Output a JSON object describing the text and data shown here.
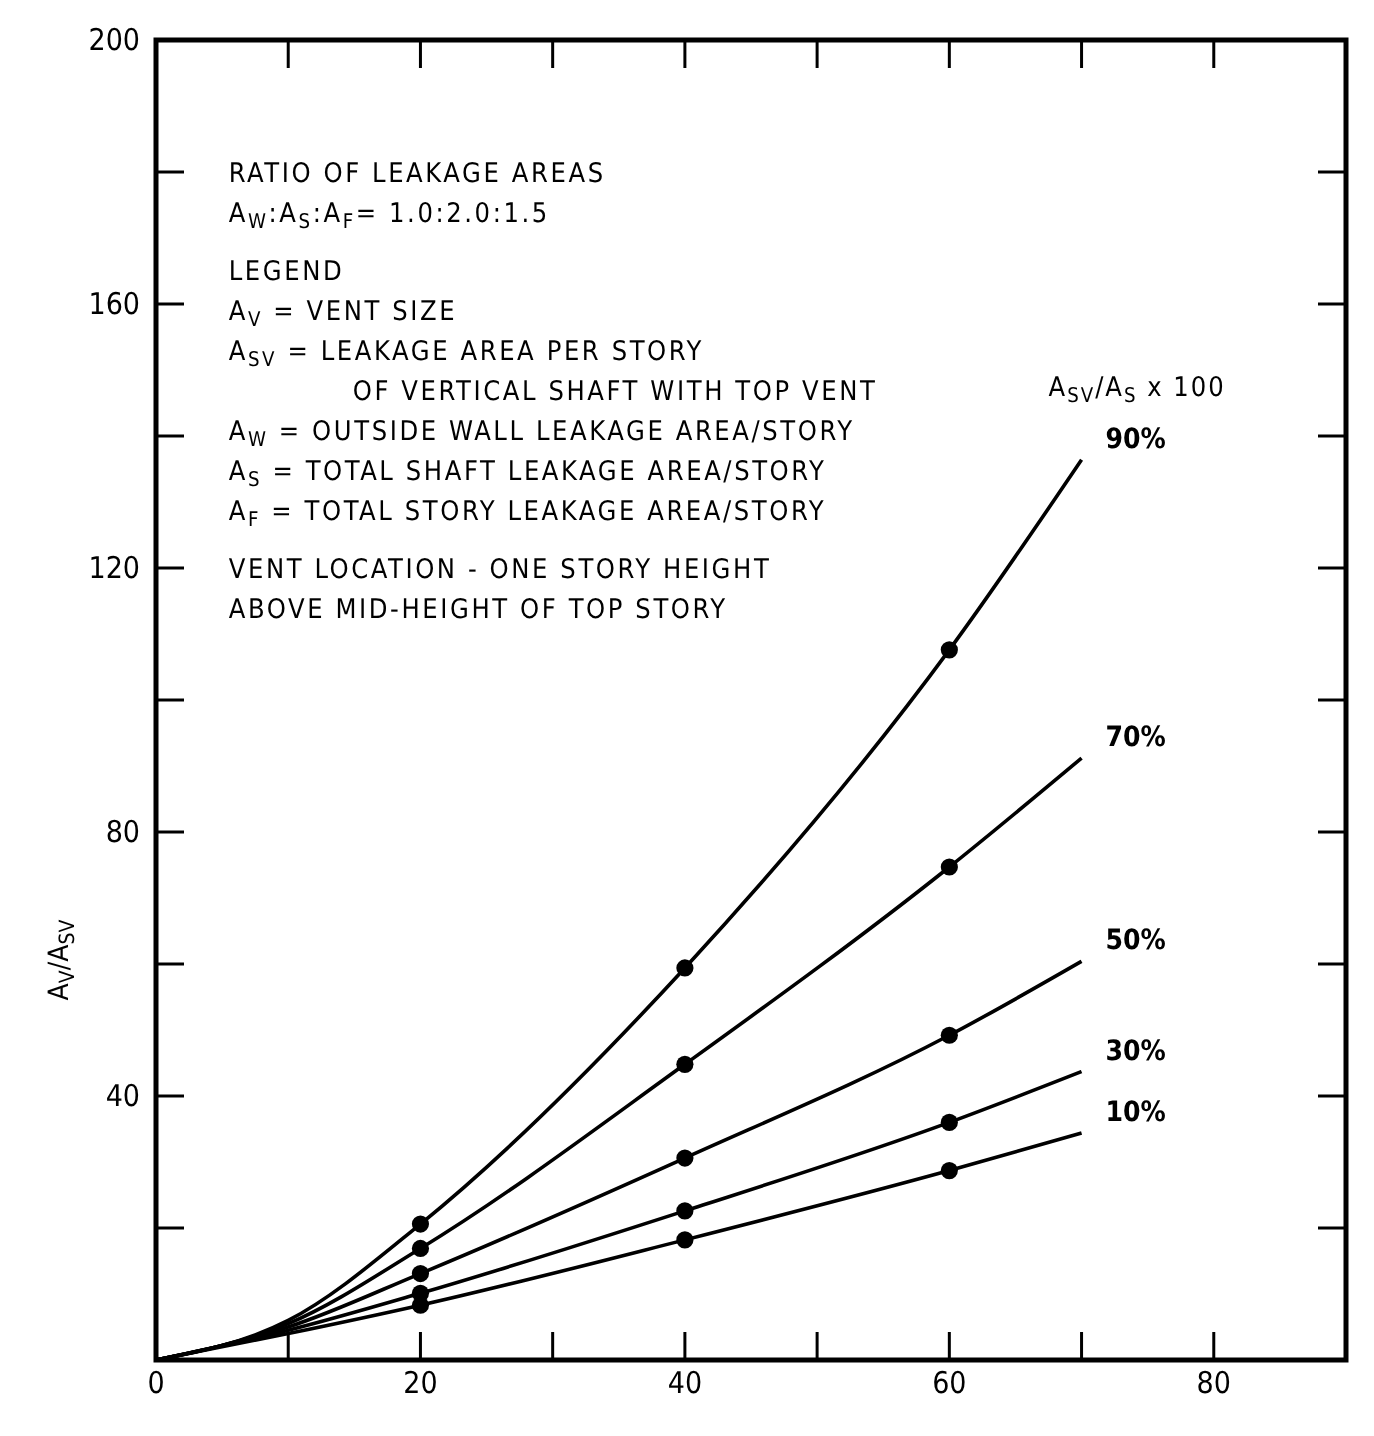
{
  "chart_data": {
    "type": "line",
    "ylabel": "A$_{V}$/A$_{SV}$",
    "xlim": [
      0,
      90
    ],
    "xticks": [
      0,
      {
        "value": 10,
        "label": null
      },
      20,
      {
        "value": 30,
        "label": null
      },
      40,
      {
        "value": 50,
        "label": null
      },
      60,
      {
        "value": 70,
        "label": null
      },
      80
    ],
    "ylim": [
      0,
      200
    ],
    "yticks": [
      {
        "value": 20,
        "label": null
      },
      40,
      {
        "value": 60,
        "label": null
      },
      80,
      {
        "value": 100,
        "label": null
      },
      120,
      {
        "value": 140,
        "label": null
      },
      160,
      {
        "value": 180,
        "label": null
      },
      200
    ],
    "grid": false,
    "marker": "none",
    "line_style": "solid",
    "series": [
      {
        "name": "90%",
        "color": "#000000",
        "x": [
          0,
          10,
          20,
          40,
          60,
          70
        ],
        "values": [
          0,
          6,
          20.6,
          59.4,
          107.6,
          136.4
        ]
      },
      {
        "name": "70%",
        "color": "#000000",
        "x": [
          0,
          10,
          20,
          40,
          60,
          70
        ],
        "values": [
          0,
          5.5,
          16.9,
          44.8,
          74.7,
          91.2
        ]
      },
      {
        "name": "50%",
        "color": "#000000",
        "x": [
          0,
          10,
          20,
          40,
          60,
          70
        ],
        "values": [
          0,
          5,
          13.1,
          30.6,
          49.2,
          60.4
        ]
      },
      {
        "name": "30%",
        "color": "#000000",
        "x": [
          0,
          10,
          20,
          40,
          60,
          70
        ],
        "values": [
          0,
          4.5,
          10.1,
          22.6,
          36,
          43.7
        ]
      },
      {
        "name": "10%",
        "color": "#000000",
        "x": [
          0,
          10,
          20,
          40,
          60,
          70
        ],
        "values": [
          0,
          4,
          8.3,
          18.2,
          28.7,
          34.4
        ]
      },
      {
        "type": "scatter",
        "marker": "circle",
        "color": "#000000",
        "x": [
          20,
          40,
          60,
          20,
          40,
          60,
          20,
          40,
          60,
          20,
          40,
          60,
          20,
          40,
          60
        ],
        "values": [
          20.6,
          59.4,
          107.6,
          16.9,
          44.8,
          74.7,
          13.1,
          30.6,
          49.2,
          10.1,
          22.6,
          36,
          8.3,
          18.2,
          28.7
        ]
      }
    ],
    "annotations": [
      "RATIO OF LEAKAGE AREAS",
      "A$_{W}$:A$_{S}$:A$_{F}$= 1.0:2.0:1.5",
      "LEGEND",
      "A$_{V}$ = VENT SIZE",
      "A$_{SV}$ = LEAKAGE AREA PER STORY",
      "OF VERTICAL SHAFT WITH TOP VENT",
      "A$_{W}$ = OUTSIDE WALL LEAKAGE AREA/STORY",
      "A$_{S}$ = TOTAL SHAFT LEAKAGE AREA/STORY",
      "A$_{F}$ = TOTAL STORY LEAKAGE AREA/STORY",
      "VENT LOCATION - ONE STORY HEIGHT",
      "ABOVE MID-HEIGHT OF TOP STORY",
      "A$_{SV}$/A$_{S}$ x 100"
    ]
  }
}
